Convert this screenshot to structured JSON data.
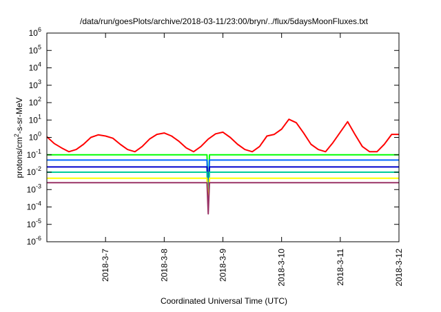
{
  "chart_data": {
    "type": "line",
    "title": "/data/run/goesPlots/archive/2018-03-11/23:00/bryn/../flux/5daysMoonFluxes.txt",
    "xlabel": "Coordinated Universal Time (UTC)",
    "ylabel": {
      "base": "protons/cm",
      "sup": "2",
      "rest": "-s-sr-MeV"
    },
    "y_scale": "log",
    "ylim": [
      1e-06,
      1000000.0
    ],
    "xlim": [
      "2018-03-06T00:00",
      "2018-03-12T00:00"
    ],
    "y_ticks": [
      {
        "value": 1e-06,
        "base": "10",
        "exp": "-6"
      },
      {
        "value": 1e-05,
        "base": "10",
        "exp": "-5"
      },
      {
        "value": 0.0001,
        "base": "10",
        "exp": "-4"
      },
      {
        "value": 0.001,
        "base": "10",
        "exp": "-3"
      },
      {
        "value": 0.01,
        "base": "10",
        "exp": "-2"
      },
      {
        "value": 0.1,
        "base": "10",
        "exp": "-1"
      },
      {
        "value": 1,
        "base": "10",
        "exp": "0"
      },
      {
        "value": 10.0,
        "base": "10",
        "exp": "1"
      },
      {
        "value": 100.0,
        "base": "10",
        "exp": "2"
      },
      {
        "value": 1000.0,
        "base": "10",
        "exp": "3"
      },
      {
        "value": 10000.0,
        "base": "10",
        "exp": "4"
      },
      {
        "value": 100000.0,
        "base": "10",
        "exp": "5"
      },
      {
        "value": 1000000.0,
        "base": "10",
        "exp": "6"
      }
    ],
    "x_ticks": [
      {
        "label": "2018-3-7",
        "t": "2018-03-07T00:00"
      },
      {
        "label": "2018-3-8",
        "t": "2018-03-08T00:00"
      },
      {
        "label": "2018-3-9",
        "t": "2018-03-09T00:00"
      },
      {
        "label": "2018-3-10",
        "t": "2018-03-10T00:00"
      },
      {
        "label": "2018-3-11",
        "t": "2018-03-11T00:00"
      },
      {
        "label": "2018-3-12",
        "t": "2018-03-12T00:00"
      }
    ],
    "grid": false,
    "legend": "none",
    "series": [
      {
        "color": "#ff0000",
        "x": [
          "2018-03-06T00:00",
          "2018-03-06T03:00",
          "2018-03-06T06:00",
          "2018-03-06T09:00",
          "2018-03-06T12:00",
          "2018-03-06T15:00",
          "2018-03-06T18:00",
          "2018-03-06T21:00",
          "2018-03-07T00:00",
          "2018-03-07T03:00",
          "2018-03-07T06:00",
          "2018-03-07T09:00",
          "2018-03-07T12:00",
          "2018-03-07T15:00",
          "2018-03-07T18:00",
          "2018-03-07T21:00",
          "2018-03-08T00:00",
          "2018-03-08T03:00",
          "2018-03-08T06:00",
          "2018-03-08T09:00",
          "2018-03-08T12:00",
          "2018-03-08T15:00",
          "2018-03-08T18:00",
          "2018-03-08T21:00",
          "2018-03-09T00:00",
          "2018-03-09T03:00",
          "2018-03-09T06:00",
          "2018-03-09T09:00",
          "2018-03-09T12:00",
          "2018-03-09T15:00",
          "2018-03-09T18:00",
          "2018-03-09T21:00",
          "2018-03-10T00:00",
          "2018-03-10T03:00",
          "2018-03-10T06:00",
          "2018-03-10T09:00",
          "2018-03-10T12:00",
          "2018-03-10T15:00",
          "2018-03-10T18:00",
          "2018-03-10T21:00",
          "2018-03-11T00:00",
          "2018-03-11T03:00",
          "2018-03-11T06:00",
          "2018-03-11T09:00",
          "2018-03-11T12:00",
          "2018-03-11T15:00",
          "2018-03-11T18:00",
          "2018-03-11T21:00",
          "2018-03-12T00:00"
        ],
        "values": [
          1.1,
          0.45,
          0.25,
          0.15,
          0.2,
          0.4,
          1.0,
          1.4,
          1.2,
          0.9,
          0.4,
          0.2,
          0.15,
          0.3,
          0.8,
          1.5,
          1.8,
          1.2,
          0.6,
          0.25,
          0.15,
          0.3,
          0.8,
          1.6,
          2.0,
          1.0,
          0.4,
          0.2,
          0.15,
          0.3,
          1.2,
          1.5,
          3.0,
          11.0,
          7.0,
          1.8,
          0.4,
          0.2,
          0.15,
          0.5,
          2.0,
          8.0,
          1.5,
          0.3,
          0.15,
          0.15,
          0.4,
          1.5,
          1.5
        ]
      },
      {
        "color": "#00ff00",
        "x": [
          "2018-03-06T00:00",
          "2018-03-07T00:00",
          "2018-03-08T00:00",
          "2018-03-08T17:30",
          "2018-03-08T18:00",
          "2018-03-08T18:30",
          "2018-03-09T00:00",
          "2018-03-10T00:00",
          "2018-03-11T00:00",
          "2018-03-12T00:00"
        ],
        "values": [
          0.1,
          0.1,
          0.1,
          0.1,
          0.0005,
          0.1,
          0.1,
          0.1,
          0.1,
          0.1
        ]
      },
      {
        "color": "#0066ff",
        "x": [
          "2018-03-06T00:00",
          "2018-03-07T00:00",
          "2018-03-08T00:00",
          "2018-03-08T17:30",
          "2018-03-08T18:00",
          "2018-03-08T18:30",
          "2018-03-09T00:00",
          "2018-03-10T00:00",
          "2018-03-11T00:00",
          "2018-03-12T00:00"
        ],
        "values": [
          0.05,
          0.05,
          0.05,
          0.05,
          0.0003,
          0.05,
          0.05,
          0.05,
          0.05,
          0.05
        ]
      },
      {
        "color": "#0000cc",
        "x": [
          "2018-03-06T00:00",
          "2018-03-07T00:00",
          "2018-03-08T00:00",
          "2018-03-08T17:30",
          "2018-03-08T18:00",
          "2018-03-08T18:30",
          "2018-03-09T00:00",
          "2018-03-10T00:00",
          "2018-03-11T00:00",
          "2018-03-12T00:00"
        ],
        "values": [
          0.02,
          0.02,
          0.02,
          0.02,
          0.0002,
          0.02,
          0.02,
          0.02,
          0.02,
          0.02
        ]
      },
      {
        "color": "#00cc99",
        "x": [
          "2018-03-06T00:00",
          "2018-03-07T00:00",
          "2018-03-08T00:00",
          "2018-03-08T17:30",
          "2018-03-08T18:00",
          "2018-03-08T18:30",
          "2018-03-09T00:00",
          "2018-03-10T00:00",
          "2018-03-11T00:00",
          "2018-03-12T00:00"
        ],
        "values": [
          0.01,
          0.01,
          0.01,
          0.01,
          0.00015,
          0.01,
          0.01,
          0.01,
          0.01,
          0.01
        ]
      },
      {
        "color": "#ffff00",
        "x": [
          "2018-03-06T00:00",
          "2018-03-07T00:00",
          "2018-03-08T00:00",
          "2018-03-08T17:30",
          "2018-03-08T18:00",
          "2018-03-08T18:30",
          "2018-03-09T00:00",
          "2018-03-10T00:00",
          "2018-03-11T00:00",
          "2018-03-12T00:00"
        ],
        "values": [
          0.0045,
          0.0045,
          0.0045,
          0.0045,
          0.0001,
          0.0045,
          0.0045,
          0.0045,
          0.0045,
          0.0045
        ]
      },
      {
        "color": "#993366",
        "x": [
          "2018-03-06T00:00",
          "2018-03-07T00:00",
          "2018-03-08T00:00",
          "2018-03-08T17:30",
          "2018-03-08T18:00",
          "2018-03-08T18:30",
          "2018-03-09T00:00",
          "2018-03-10T00:00",
          "2018-03-11T00:00",
          "2018-03-12T00:00"
        ],
        "values": [
          0.0025,
          0.0025,
          0.0025,
          0.0025,
          4e-05,
          0.0025,
          0.0025,
          0.0025,
          0.0025,
          0.0025
        ]
      }
    ]
  }
}
